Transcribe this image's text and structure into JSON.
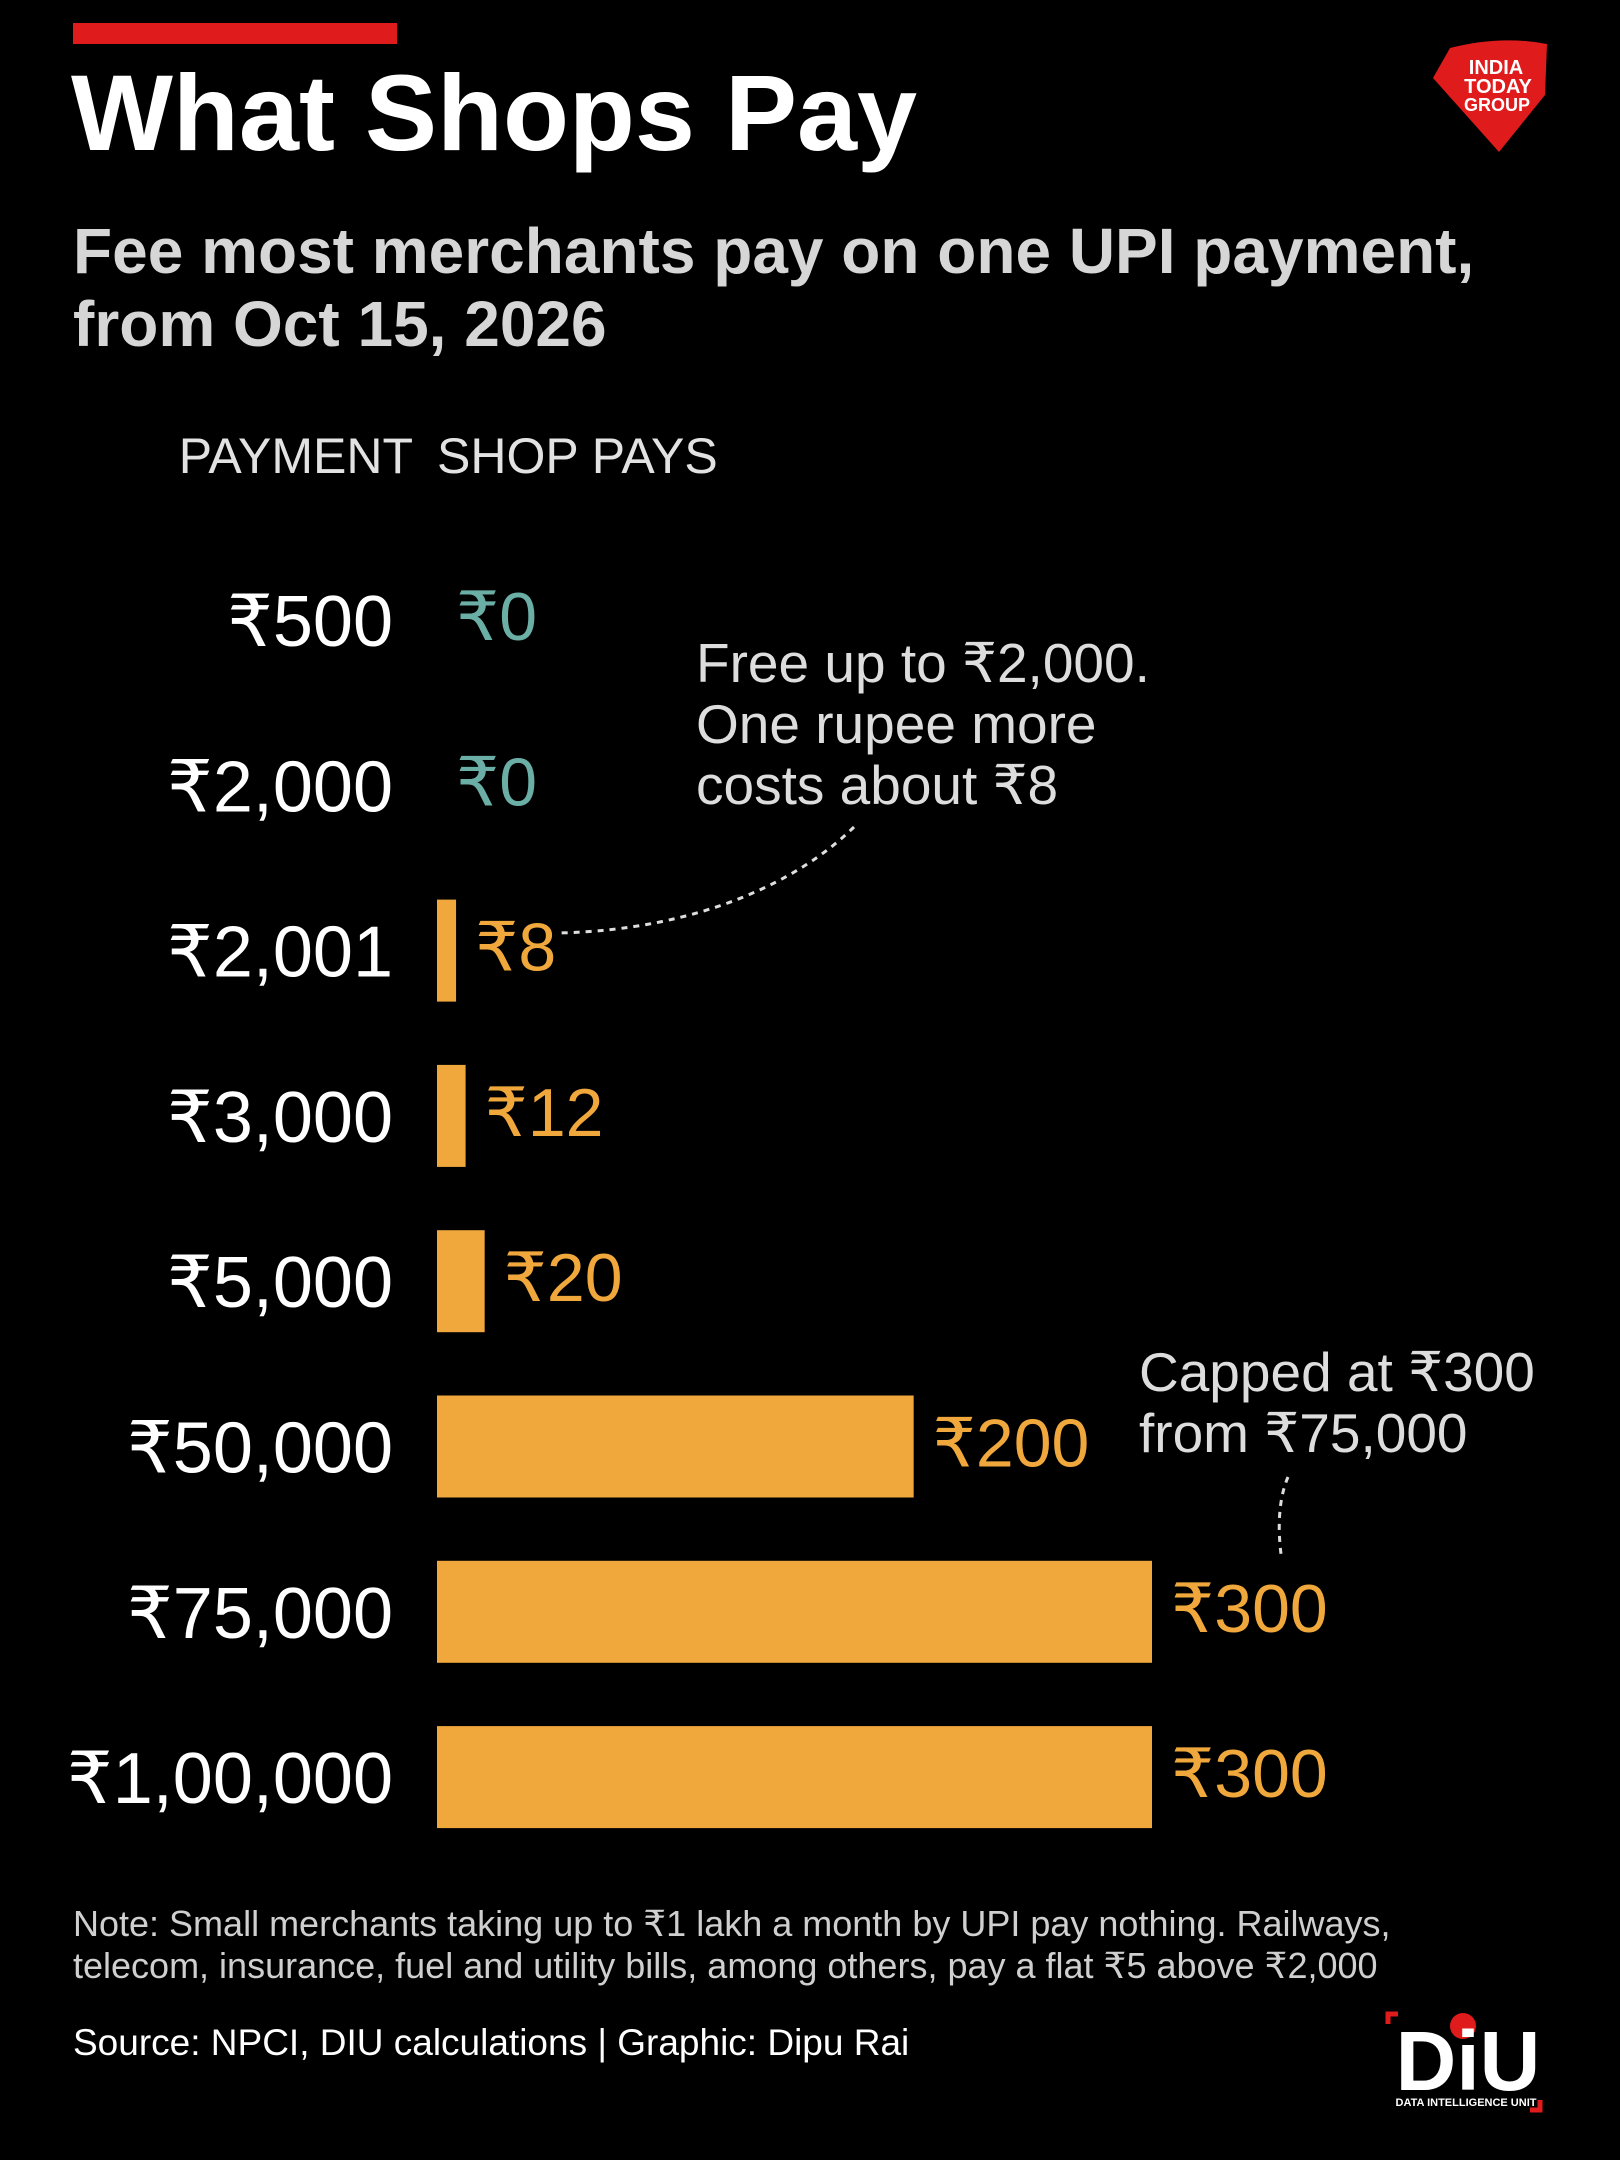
{
  "chart_data": {
    "type": "bar",
    "orientation": "horizontal",
    "title": "What Shops Pay",
    "subtitle": [
      "Fee most merchants pay on one UPI payment,",
      "from Oct 15, 2026"
    ],
    "category_header": "PAYMENT",
    "value_header": "SHOP PAYS",
    "categories": [
      "₹500",
      "₹2,000",
      "₹2,001",
      "₹3,000",
      "₹5,000",
      "₹50,000",
      "₹75,000",
      "₹1,00,000"
    ],
    "values": [
      0,
      0,
      8,
      12,
      20,
      200,
      300,
      300
    ],
    "value_labels": [
      "₹0",
      "₹0",
      "₹8",
      "₹12",
      "₹20",
      "₹200",
      "₹300",
      "₹300"
    ],
    "colors": [
      "#6aaea5",
      "#6aaea5",
      "#f0a83c",
      "#f0a83c",
      "#f0a83c",
      "#f0a83c",
      "#f0a83c",
      "#f0a83c"
    ],
    "annotations": [
      {
        "lines": [
          "Free up to ₹2,000.",
          "One rupee more",
          "costs about ₹8"
        ]
      },
      {
        "lines": [
          "Capped at ₹300",
          "from ₹75,000"
        ]
      }
    ],
    "note": [
      "Note: Small merchants taking up to ₹1 lakh a month by UPI pay nothing. Railways,",
      "telecom, insurance, fuel and utility bills, among others, pay a flat ₹5 above ₹2,000"
    ],
    "source": "Source: NPCI, DIU calculations | Graphic: Dipu Rai"
  },
  "logos": {
    "publisher": [
      "INDIA",
      "TODAY",
      "GROUP"
    ],
    "unit": "DiU",
    "unit_caption": "DATA INTELLIGENCE UNIT"
  }
}
